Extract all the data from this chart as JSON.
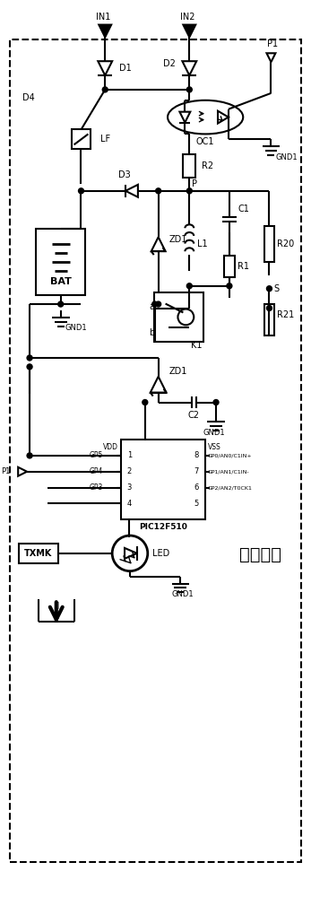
{
  "title": "蓄电模块",
  "bg_color": "#ffffff",
  "line_color": "#000000",
  "lw": 1.5,
  "dashed_border": true,
  "components": {
    "IN1_label": "IN1",
    "IN2_label": "IN2",
    "D1_label": "D1",
    "D2_label": "D2",
    "D3_label": "D3",
    "D4_label": "D4",
    "LF_label": "LF",
    "OC1_label": "OC1",
    "R2_label": "R2",
    "R1_label": "R1",
    "R20_label": "R20",
    "R21_label": "R21",
    "C1_label": "C1",
    "C2_label": "C2",
    "L1_label": "L1",
    "ZD1_label": "ZD1",
    "BAT_label": "BAT",
    "K1_label": "K1",
    "GND1_label": "GND1",
    "P_label": "P",
    "S_label": "S",
    "P1_label": "P1",
    "VDD_label": "VDD",
    "VSS_label": "VSS",
    "GP5_label": "GP5",
    "GP4_label": "GP4",
    "GP3_label": "GP3",
    "GP0_label": "GP0/AN0/C1IN+",
    "GP1_label": "GP1/AN1/C1IN-",
    "GP2_label": "GP2/AN2/T0CK1",
    "PIC_label": "PIC12F510",
    "LED_label": "LED",
    "TXMK_label": "TXMK"
  }
}
